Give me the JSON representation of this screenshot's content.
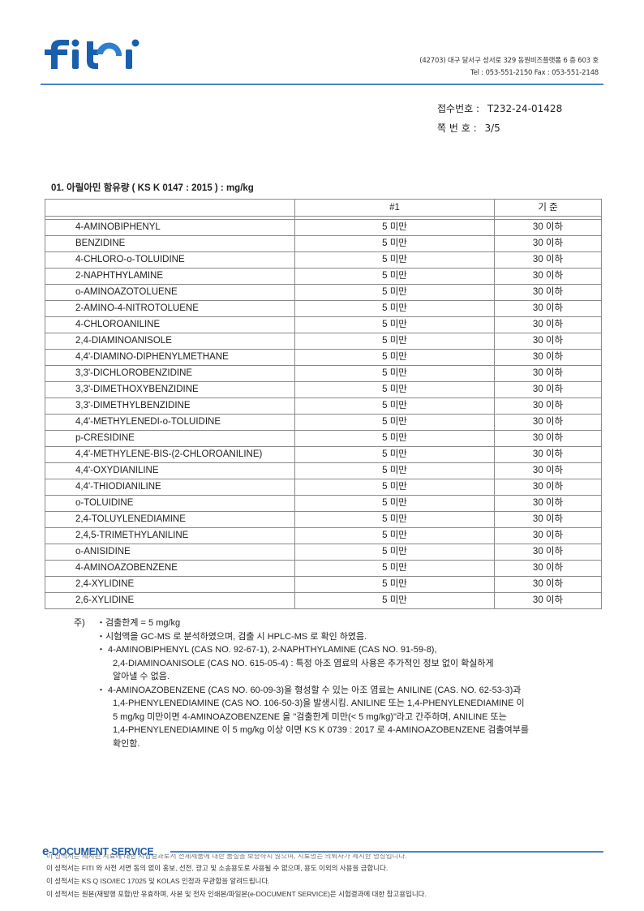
{
  "header": {
    "logo_text": "fiti",
    "address": "(42703) 대구 달서구 성서로 329 동원비즈플랫폼 6 층 603 호",
    "contact": "Tel : 053-551-2150   Fax : 053-551-2148",
    "brand_color": "#1a5fae"
  },
  "receipt": {
    "number_label": "접수번호 :",
    "number_value": "T232-24-01428",
    "page_label": "쪽 번 호 :",
    "page_value": "3/5"
  },
  "section": {
    "title": "01.  아릴아민 함유량 ( KS K 0147 : 2015 ) : mg/kg"
  },
  "table": {
    "headers": [
      "",
      "#1",
      "기 준"
    ],
    "rows": [
      [
        "4-AMINOBIPHENYL",
        "5 미만",
        "30 이하"
      ],
      [
        "BENZIDINE",
        "5 미만",
        "30 이하"
      ],
      [
        "4-CHLORO-o-TOLUIDINE",
        "5 미만",
        "30 이하"
      ],
      [
        "2-NAPHTHYLAMINE",
        "5 미만",
        "30 이하"
      ],
      [
        "o-AMINOAZOTOLUENE",
        "5 미만",
        "30 이하"
      ],
      [
        "2-AMINO-4-NITROTOLUENE",
        "5 미만",
        "30 이하"
      ],
      [
        "4-CHLOROANILINE",
        "5 미만",
        "30 이하"
      ],
      [
        "2,4-DIAMINOANISOLE",
        "5 미만",
        "30 이하"
      ],
      [
        "4,4'-DIAMINO-DIPHENYLMETHANE",
        "5 미만",
        "30 이하"
      ],
      [
        "3,3'-DICHLOROBENZIDINE",
        "5 미만",
        "30 이하"
      ],
      [
        "3,3'-DIMETHOXYBENZIDINE",
        "5 미만",
        "30 이하"
      ],
      [
        "3,3'-DIMETHYLBENZIDINE",
        "5 미만",
        "30 이하"
      ],
      [
        "4,4'-METHYLENEDI-o-TOLUIDINE",
        "5 미만",
        "30 이하"
      ],
      [
        "p-CRESIDINE",
        "5 미만",
        "30 이하"
      ],
      [
        "4,4'-METHYLENE-BIS-(2-CHLOROANILINE)",
        "5 미만",
        "30 이하"
      ],
      [
        "4,4'-OXYDIANILINE",
        "5 미만",
        "30 이하"
      ],
      [
        "4,4'-THIODIANILINE",
        "5 미만",
        "30 이하"
      ],
      [
        "o-TOLUIDINE",
        "5 미만",
        "30 이하"
      ],
      [
        "2,4-TOLUYLENEDIAMINE",
        "5 미만",
        "30 이하"
      ],
      [
        "2,4,5-TRIMETHYLANILINE",
        "5 미만",
        "30 이하"
      ],
      [
        "o-ANISIDINE",
        "5 미만",
        "30 이하"
      ],
      [
        "4-AMINOAZOBENZENE",
        "5 미만",
        "30 이하"
      ],
      [
        "2,4-XYLIDINE",
        "5 미만",
        "30 이하"
      ],
      [
        "2,6-XYLIDINE",
        "5 미만",
        "30 이하"
      ]
    ]
  },
  "notes": {
    "prefix": "주)",
    "lines": [
      "・검출한계  = 5 mg/kg",
      "・시험액을 GC-MS 로 분석하였으며, 검출 시 HPLC-MS 로 확인 하였음.",
      "・ 4-AMINOBIPHENYL (CAS NO. 92-67-1), 2-NAPHTHYLAMINE (CAS NO. 91-59-8),",
      "2,4-DIAMINOANISOLE (CAS NO. 615-05-4) : 특정 아조 염료의 사용은 추가적인 정보 없이 확실하게",
      "알아낼 수 없음.",
      "・ 4-AMINOAZOBENZENE (CAS NO. 60-09-3)을 형성할 수 있는 아조 염료는 ANILINE (CAS. NO. 62-53-3)과",
      "1,4-PHENYLENEDIAMINE (CAS NO. 106-50-3)을 발생시킴. ANILINE 또는 1,4-PHENYLENEDIAMINE 이",
      "5 mg/kg 미만이면 4-AMINOAZOBENZENE 을 \"검출한계 미만(< 5 mg/kg)\"라고 간주하며, ANILINE 또는",
      "1,4-PHENYLENEDIAMINE 이 5 mg/kg 이상 이면 KS K 0739 : 2017 로 4-AMINOAZOBENZENE 검출여부를",
      "확인함."
    ]
  },
  "footer": {
    "service_e": "e",
    "service_label": "-DOCUMENT SERVICE",
    "clipped_line": "이 성적서는 제시된 시료에 대한 시험결과로서 전체제품에 대한 품질을 보증하지 않으며, 시료명은 의뢰자가 제시한 명칭입니다.",
    "lines": [
      "이 성적서는 FITI 와 사전 서면 동의 없이 홍보, 선전, 광고 및 소송용도로 사용될 수 없으며, 용도 이외의 사용을 금합니다.",
      "이 성적서는 KS Q ISO/IEC 17025 및 KOLAS 인정과 무관함을 알려드립니다.",
      "이 성적서는 원본(재발행 포함)만 유효하며, 사본 및 전자 인쇄본/파일본(e-DOCUMENT SERVICE)은 시험결과에 대한 참고용입니다."
    ]
  }
}
